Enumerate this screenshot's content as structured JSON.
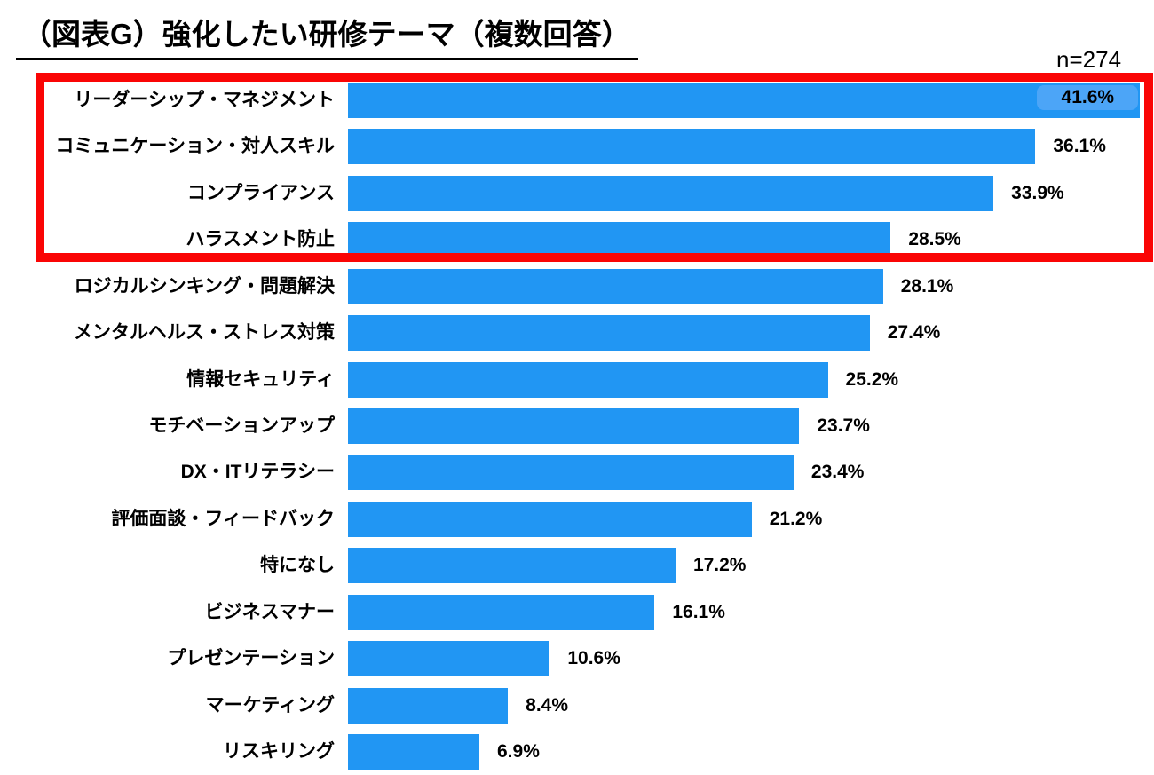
{
  "title": "（図表G）強化したい研修テーマ（複数回答）",
  "sample_size": "n=274",
  "chart_data": {
    "type": "bar",
    "orientation": "horizontal",
    "title": "（図表G）強化したい研修テーマ（複数回答）",
    "sample_size": "n=274",
    "categories": [
      "リーダーシップ・マネジメント",
      "コミュニケーション・対人スキル",
      "コンプライアンス",
      "ハラスメント防止",
      "ロジカルシンキング・問題解決",
      "メンタルヘルス・ストレス対策",
      "情報セキュリティ",
      "モチベーションアップ",
      "DX・ITリテラシー",
      "評価面談・フィードバック",
      "特になし",
      "ビジネスマナー",
      "プレゼンテーション",
      "マーケティング",
      "リスキリング"
    ],
    "values": [
      41.6,
      36.1,
      33.9,
      28.5,
      28.1,
      27.4,
      25.2,
      23.7,
      23.4,
      21.2,
      17.2,
      16.1,
      10.6,
      8.4,
      6.9
    ],
    "value_labels": [
      "41.6%",
      "36.1%",
      "33.9%",
      "28.5%",
      "28.1%",
      "27.4%",
      "25.2%",
      "23.7%",
      "23.4%",
      "21.2%",
      "17.2%",
      "16.1%",
      "10.6%",
      "8.4%",
      "6.9%"
    ],
    "xlim": [
      0,
      43.5
    ],
    "bar_color": "#2196f3",
    "first_label_bg": "#4ca5f7",
    "highlight_border_color": "#fa0505",
    "highlighted_rows": [
      0,
      1,
      2,
      3
    ],
    "grid": false,
    "legend": false
  }
}
